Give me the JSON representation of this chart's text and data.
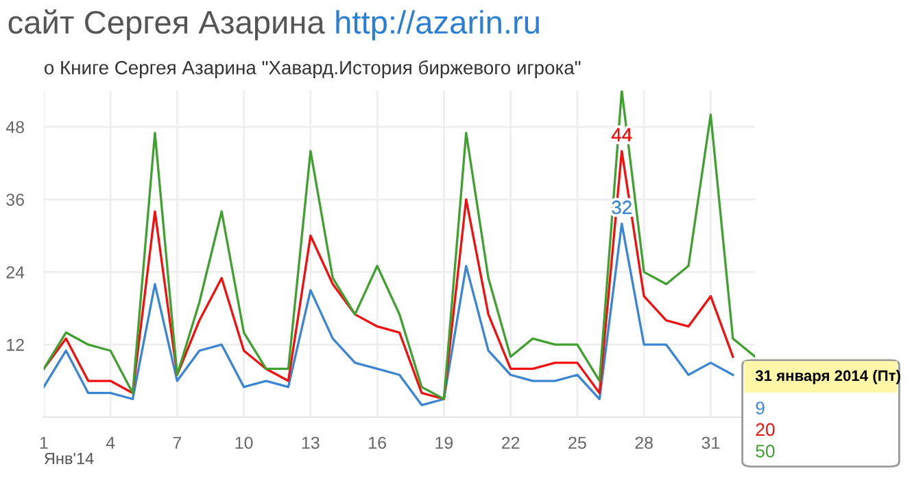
{
  "chart_data": {
    "type": "line",
    "title": "сайт Сергея Азарина http://azarin.ru",
    "subtitle": "о Книге Сергея Азарина \"Хавард.История биржевого игрока\"",
    "xlabel": "Янв'14",
    "x": [
      1,
      2,
      3,
      4,
      5,
      6,
      7,
      8,
      9,
      10,
      11,
      12,
      13,
      14,
      15,
      16,
      17,
      18,
      19,
      20,
      21,
      22,
      23,
      24,
      25,
      26,
      27,
      28,
      29,
      30,
      31,
      32,
      33
    ],
    "series": [
      {
        "color": "#3a86d4",
        "values": [
          5,
          11,
          4,
          4,
          3,
          22,
          6,
          11,
          12,
          5,
          6,
          5,
          21,
          13,
          9,
          8,
          7,
          2,
          3,
          25,
          11,
          7,
          6,
          6,
          7,
          3,
          32,
          12,
          12,
          7,
          9,
          7,
          null
        ]
      },
      {
        "color": "#f01010",
        "values": [
          8,
          13,
          6,
          6,
          4,
          34,
          7,
          16,
          23,
          11,
          8,
          6,
          30,
          22,
          17,
          15,
          14,
          4,
          3,
          36,
          17,
          8,
          8,
          9,
          9,
          4,
          44,
          20,
          16,
          15,
          20,
          10,
          null
        ]
      },
      {
        "color": "#40a030",
        "values": [
          8,
          14,
          12,
          11,
          4,
          47,
          7,
          19,
          34,
          14,
          8,
          8,
          44,
          23,
          17,
          25,
          17,
          5,
          3,
          47,
          23,
          10,
          13,
          12,
          12,
          6,
          54,
          24,
          22,
          25,
          50,
          13,
          10
        ]
      }
    ],
    "xlim": [
      1,
      33
    ],
    "ylim": [
      0,
      54
    ],
    "xticks": [
      1,
      4,
      7,
      10,
      13,
      16,
      19,
      22,
      25,
      28,
      31
    ],
    "yticks": [
      12,
      24,
      36,
      48
    ],
    "grid": true,
    "marker": "none",
    "line_style": "solid",
    "annotations": [
      {
        "text": "44",
        "x": 27,
        "y": 44
      },
      {
        "text": "32",
        "x": 27,
        "y": 32
      },
      "31 января 2014 (Пт)",
      "9",
      "20",
      "50"
    ]
  }
}
